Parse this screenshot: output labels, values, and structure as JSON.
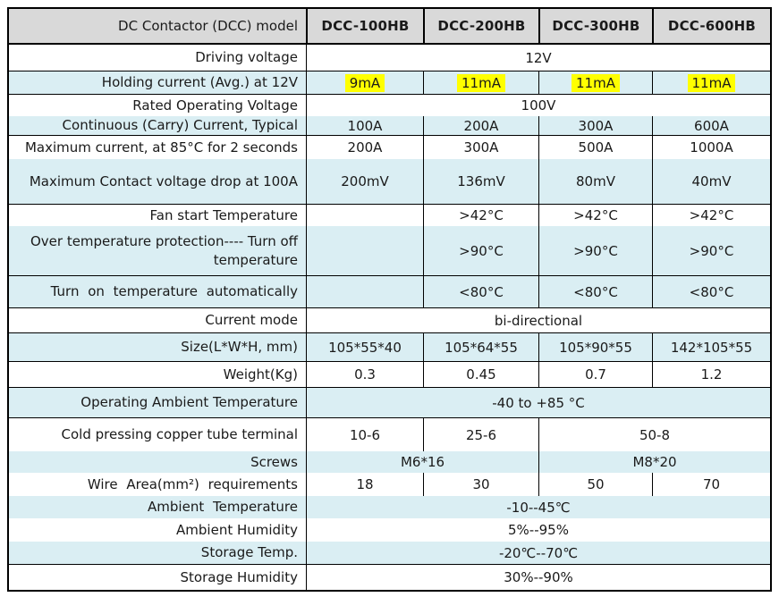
{
  "colors": {
    "header_bg": "#d9d9d9",
    "row_stripe_blue": "#daeef3",
    "highlight_yellow": "#ffff00",
    "border": "#000000",
    "text": "#1a1a1a"
  },
  "table": {
    "header": {
      "label": "DC Contactor (DCC) model",
      "models": [
        "DCC-100HB",
        "DCC-200HB",
        "DCC-300HB",
        "DCC-600HB"
      ]
    },
    "rows": [
      {
        "label": "Driving voltage",
        "cells": [
          "12V"
        ]
      },
      {
        "label": "Holding current (Avg.) at 12V",
        "cells": [
          "9mA",
          "11mA",
          "11mA",
          "11mA"
        ],
        "highlighted": true
      },
      {
        "label": "Rated Operating Voltage",
        "cells": [
          "100V"
        ]
      },
      {
        "label": "Continuous (Carry) Current, Typical",
        "cells": [
          "100A",
          "200A",
          "300A",
          "600A"
        ]
      },
      {
        "label": "Maximum current, at 85°C for 2 seconds",
        "cells": [
          "200A",
          "300A",
          "500A",
          "1000A"
        ]
      },
      {
        "label": "Maximum Contact voltage drop at 100A",
        "cells": [
          "200mV",
          "136mV",
          "80mV",
          "40mV"
        ]
      },
      {
        "label": "Fan start Temperature",
        "cells": [
          "",
          ">42°C",
          ">42°C",
          ">42°C"
        ]
      },
      {
        "label": "Over temperature protection---- Turn off temperature",
        "cells": [
          "",
          ">90°C",
          ">90°C",
          ">90°C"
        ]
      },
      {
        "label": "Turn on temperature automatically",
        "cells": [
          "",
          "<80°C",
          "<80°C",
          "<80°C"
        ]
      },
      {
        "label": "Current mode",
        "cells": [
          "bi-directional"
        ]
      },
      {
        "label": "Size(L*W*H, mm)",
        "cells": [
          "105*55*40",
          "105*64*55",
          "105*90*55",
          "142*105*55"
        ]
      },
      {
        "label": "Weight(Kg)",
        "cells": [
          "0.3",
          "0.45",
          "0.7",
          "1.2"
        ]
      },
      {
        "label": "Operating Ambient Temperature",
        "cells": [
          "-40 to +85 °C"
        ]
      },
      {
        "label": "Cold pressing copper tube terminal",
        "cells": [
          "10-6",
          "25-6",
          "50-8"
        ]
      },
      {
        "label": "Screws",
        "cells": [
          "M6*16",
          "M8*20"
        ]
      },
      {
        "label": "Wire Area(mm²) requirements",
        "cells": [
          "18",
          "30",
          "50",
          "70"
        ]
      },
      {
        "label": "Ambient Temperature",
        "cells": [
          "-10--45℃"
        ]
      },
      {
        "label": "Ambient Humidity",
        "cells": [
          "5%--95%"
        ]
      },
      {
        "label": "Storage Temp.",
        "cells": [
          "-20℃--70℃"
        ]
      },
      {
        "label": "Storage Humidity",
        "cells": [
          "30%--90%"
        ]
      }
    ]
  }
}
